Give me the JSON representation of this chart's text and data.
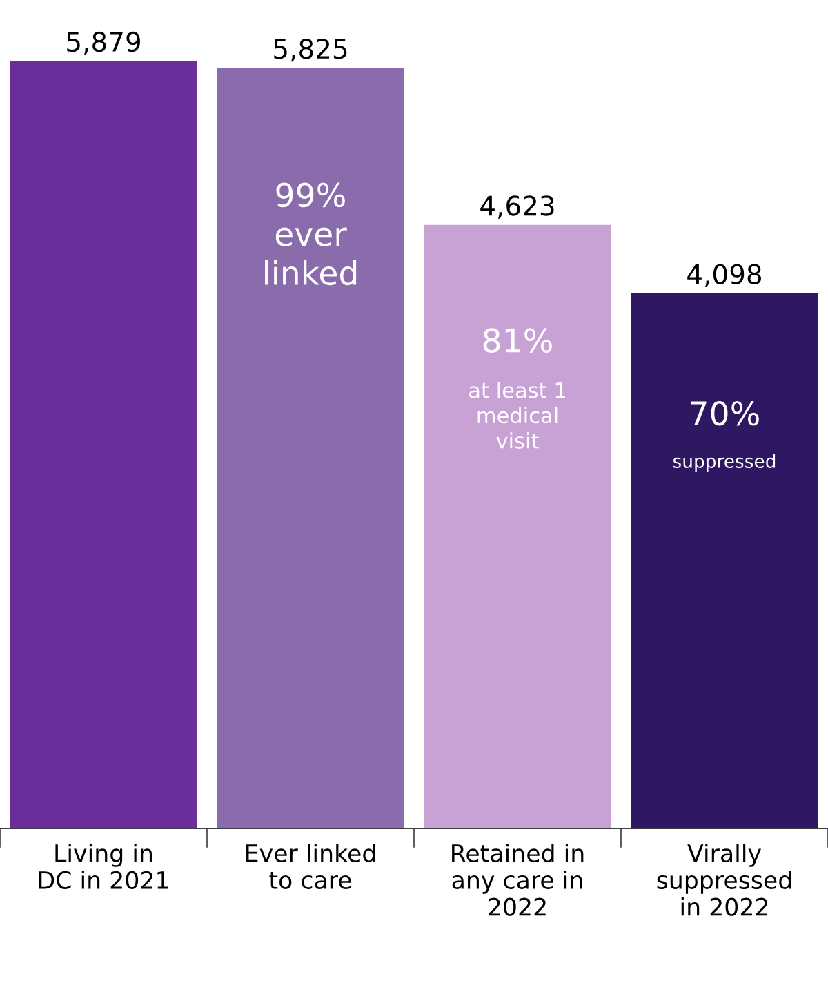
{
  "chart_data": {
    "type": "bar",
    "categories": [
      "Living in\nDC in 2021",
      "Ever linked\nto care",
      "Retained in\nany care in\n2022",
      "Virally\nsuppressed\nin 2022"
    ],
    "values": [
      5879,
      5825,
      4623,
      4098
    ],
    "colors": [
      "#6b2c9c",
      "#8a6bab",
      "#c9a2d5",
      "#2f1762"
    ],
    "value_labels": [
      "5,879",
      "5,825",
      "4,623",
      "4,098"
    ],
    "annotations": [
      "99%\never\nlinked",
      "81%",
      "at least 1\nmedical\nvisit",
      "70%",
      "suppressed"
    ],
    "grid": false,
    "legend": false
  }
}
